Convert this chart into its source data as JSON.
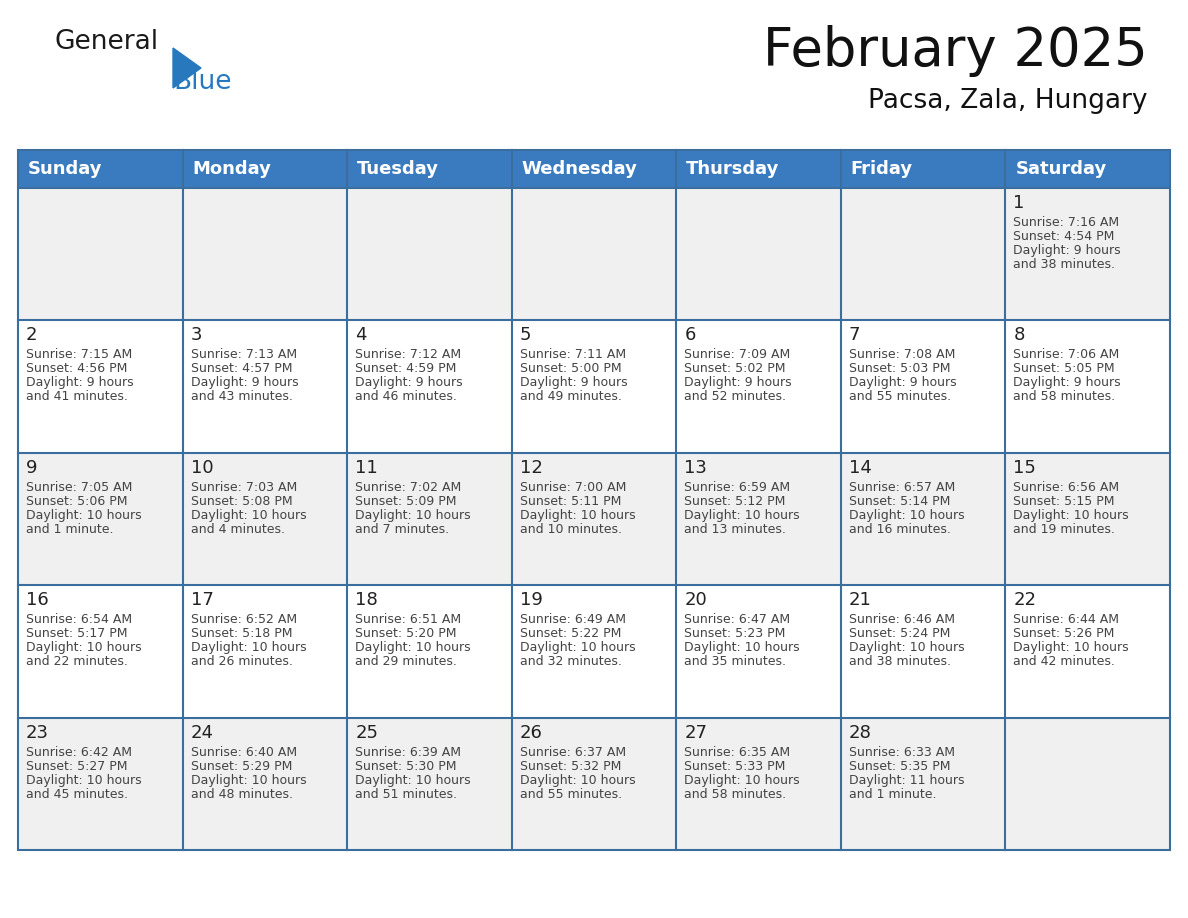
{
  "title": "February 2025",
  "subtitle": "Pacsa, Zala, Hungary",
  "days_of_week": [
    "Sunday",
    "Monday",
    "Tuesday",
    "Wednesday",
    "Thursday",
    "Friday",
    "Saturday"
  ],
  "header_bg": "#3a7bbf",
  "header_text": "#ffffff",
  "cell_bg_odd": "#f0f0f0",
  "cell_bg_even": "#ffffff",
  "border_color": "#3a6e9e",
  "text_color": "#444444",
  "day_num_color": "#222222",
  "calendar_data": [
    [
      null,
      null,
      null,
      null,
      null,
      null,
      {
        "day": 1,
        "sunrise": "7:16 AM",
        "sunset": "4:54 PM",
        "daylight": "9 hours\nand 38 minutes."
      }
    ],
    [
      {
        "day": 2,
        "sunrise": "7:15 AM",
        "sunset": "4:56 PM",
        "daylight": "9 hours\nand 41 minutes."
      },
      {
        "day": 3,
        "sunrise": "7:13 AM",
        "sunset": "4:57 PM",
        "daylight": "9 hours\nand 43 minutes."
      },
      {
        "day": 4,
        "sunrise": "7:12 AM",
        "sunset": "4:59 PM",
        "daylight": "9 hours\nand 46 minutes."
      },
      {
        "day": 5,
        "sunrise": "7:11 AM",
        "sunset": "5:00 PM",
        "daylight": "9 hours\nand 49 minutes."
      },
      {
        "day": 6,
        "sunrise": "7:09 AM",
        "sunset": "5:02 PM",
        "daylight": "9 hours\nand 52 minutes."
      },
      {
        "day": 7,
        "sunrise": "7:08 AM",
        "sunset": "5:03 PM",
        "daylight": "9 hours\nand 55 minutes."
      },
      {
        "day": 8,
        "sunrise": "7:06 AM",
        "sunset": "5:05 PM",
        "daylight": "9 hours\nand 58 minutes."
      }
    ],
    [
      {
        "day": 9,
        "sunrise": "7:05 AM",
        "sunset": "5:06 PM",
        "daylight": "10 hours\nand 1 minute."
      },
      {
        "day": 10,
        "sunrise": "7:03 AM",
        "sunset": "5:08 PM",
        "daylight": "10 hours\nand 4 minutes."
      },
      {
        "day": 11,
        "sunrise": "7:02 AM",
        "sunset": "5:09 PM",
        "daylight": "10 hours\nand 7 minutes."
      },
      {
        "day": 12,
        "sunrise": "7:00 AM",
        "sunset": "5:11 PM",
        "daylight": "10 hours\nand 10 minutes."
      },
      {
        "day": 13,
        "sunrise": "6:59 AM",
        "sunset": "5:12 PM",
        "daylight": "10 hours\nand 13 minutes."
      },
      {
        "day": 14,
        "sunrise": "6:57 AM",
        "sunset": "5:14 PM",
        "daylight": "10 hours\nand 16 minutes."
      },
      {
        "day": 15,
        "sunrise": "6:56 AM",
        "sunset": "5:15 PM",
        "daylight": "10 hours\nand 19 minutes."
      }
    ],
    [
      {
        "day": 16,
        "sunrise": "6:54 AM",
        "sunset": "5:17 PM",
        "daylight": "10 hours\nand 22 minutes."
      },
      {
        "day": 17,
        "sunrise": "6:52 AM",
        "sunset": "5:18 PM",
        "daylight": "10 hours\nand 26 minutes."
      },
      {
        "day": 18,
        "sunrise": "6:51 AM",
        "sunset": "5:20 PM",
        "daylight": "10 hours\nand 29 minutes."
      },
      {
        "day": 19,
        "sunrise": "6:49 AM",
        "sunset": "5:22 PM",
        "daylight": "10 hours\nand 32 minutes."
      },
      {
        "day": 20,
        "sunrise": "6:47 AM",
        "sunset": "5:23 PM",
        "daylight": "10 hours\nand 35 minutes."
      },
      {
        "day": 21,
        "sunrise": "6:46 AM",
        "sunset": "5:24 PM",
        "daylight": "10 hours\nand 38 minutes."
      },
      {
        "day": 22,
        "sunrise": "6:44 AM",
        "sunset": "5:26 PM",
        "daylight": "10 hours\nand 42 minutes."
      }
    ],
    [
      {
        "day": 23,
        "sunrise": "6:42 AM",
        "sunset": "5:27 PM",
        "daylight": "10 hours\nand 45 minutes."
      },
      {
        "day": 24,
        "sunrise": "6:40 AM",
        "sunset": "5:29 PM",
        "daylight": "10 hours\nand 48 minutes."
      },
      {
        "day": 25,
        "sunrise": "6:39 AM",
        "sunset": "5:30 PM",
        "daylight": "10 hours\nand 51 minutes."
      },
      {
        "day": 26,
        "sunrise": "6:37 AM",
        "sunset": "5:32 PM",
        "daylight": "10 hours\nand 55 minutes."
      },
      {
        "day": 27,
        "sunrise": "6:35 AM",
        "sunset": "5:33 PM",
        "daylight": "10 hours\nand 58 minutes."
      },
      {
        "day": 28,
        "sunrise": "6:33 AM",
        "sunset": "5:35 PM",
        "daylight": "11 hours\nand 1 minute."
      },
      null
    ]
  ],
  "logo_general_color": "#1a1a1a",
  "logo_blue_color": "#2878be",
  "title_fontsize": 38,
  "subtitle_fontsize": 19,
  "header_fontsize": 13,
  "day_num_fontsize": 13,
  "cell_text_fontsize": 9.0
}
